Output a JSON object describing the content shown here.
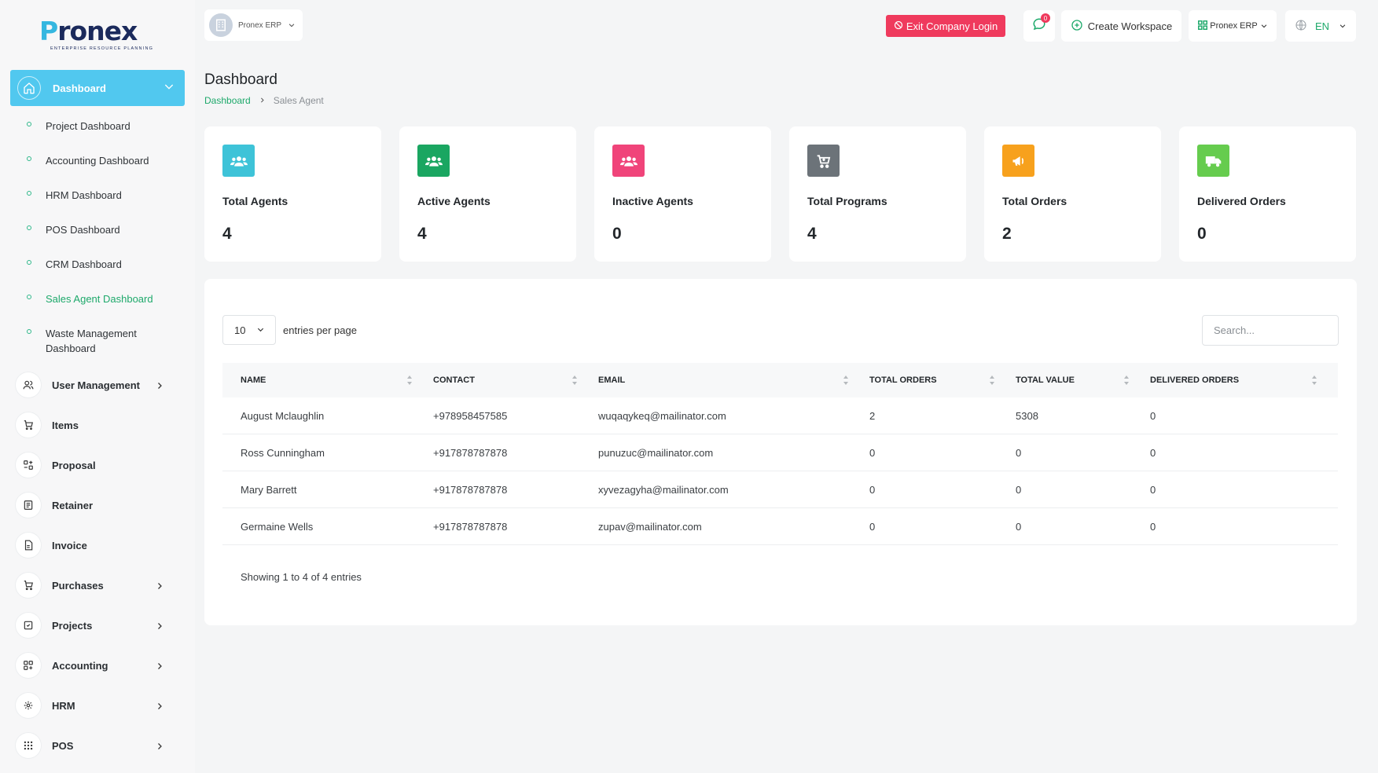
{
  "brand": {
    "logo_first": "P",
    "logo_rest": "ronex",
    "tagline": "ENTERPRISE RESOURCE PLANNING"
  },
  "colors": {
    "accent": "#51c8ef",
    "green": "#1ea96b",
    "danger": "#ef3a5d"
  },
  "sidebar": {
    "active": {
      "label": "Dashboard",
      "icon": "home-icon"
    },
    "sub_items": [
      {
        "label": "Project Dashboard"
      },
      {
        "label": "Accounting Dashboard"
      },
      {
        "label": "HRM Dashboard"
      },
      {
        "label": "POS Dashboard"
      },
      {
        "label": "CRM Dashboard"
      },
      {
        "label": "Sales Agent Dashboard"
      },
      {
        "label": "Waste Management Dashboard"
      }
    ],
    "menu": [
      {
        "label": "User Management",
        "icon": "users-icon"
      },
      {
        "label": "Items",
        "icon": "cart-icon"
      },
      {
        "label": "Proposal",
        "icon": "proposal-icon"
      },
      {
        "label": "Retainer",
        "icon": "retainer-icon"
      },
      {
        "label": "Invoice",
        "icon": "invoice-icon"
      },
      {
        "label": "Purchases",
        "icon": "cart-icon"
      },
      {
        "label": "Projects",
        "icon": "check-square-icon"
      },
      {
        "label": "Accounting",
        "icon": "grid-icon"
      },
      {
        "label": "HRM",
        "icon": "hrm-icon"
      },
      {
        "label": "POS",
        "icon": "dots-grid-icon"
      }
    ]
  },
  "header": {
    "company": "Pronex ERP",
    "exit_label": "Exit Company Login",
    "notif_count": "0",
    "workspace_label": "Create Workspace",
    "erp_label": "Pronex ERP",
    "lang": "EN"
  },
  "page": {
    "title": "Dashboard",
    "breadcrumb": [
      "Dashboard",
      "Sales Agent"
    ]
  },
  "stats": [
    {
      "title": "Total Agents",
      "value": "4",
      "color": "#3ec3d8",
      "icon": "users-icon"
    },
    {
      "title": "Active Agents",
      "value": "4",
      "color": "#1aa661",
      "icon": "users-icon"
    },
    {
      "title": "Inactive Agents",
      "value": "0",
      "color": "#f0447a",
      "icon": "users-icon"
    },
    {
      "title": "Total Programs",
      "value": "4",
      "color": "#6c7379",
      "icon": "cart-icon"
    },
    {
      "title": "Total Orders",
      "value": "2",
      "color": "#f7a11d",
      "icon": "megaphone-icon"
    },
    {
      "title": "Delivered Orders",
      "value": "0",
      "color": "#66cc4e",
      "icon": "truck-icon"
    }
  ],
  "table": {
    "per_page_value": "10",
    "per_page_label": "entries per page",
    "search_placeholder": "Search...",
    "columns": [
      "NAME",
      "CONTACT",
      "EMAIL",
      "TOTAL ORDERS",
      "TOTAL VALUE",
      "DELIVERED ORDERS"
    ],
    "rows": [
      [
        "August Mclaughlin",
        "+978958457585",
        "wuqaqykeq@mailinator.com",
        "2",
        "5308",
        "0"
      ],
      [
        "Ross Cunningham",
        "+917878787878",
        "punuzuc@mailinator.com",
        "0",
        "0",
        "0"
      ],
      [
        "Mary Barrett",
        "+917878787878",
        "xyvezagyha@mailinator.com",
        "0",
        "0",
        "0"
      ],
      [
        "Germaine Wells",
        "+917878787878",
        "zupav@mailinator.com",
        "0",
        "0",
        "0"
      ]
    ],
    "info": "Showing 1 to 4 of 4 entries"
  }
}
